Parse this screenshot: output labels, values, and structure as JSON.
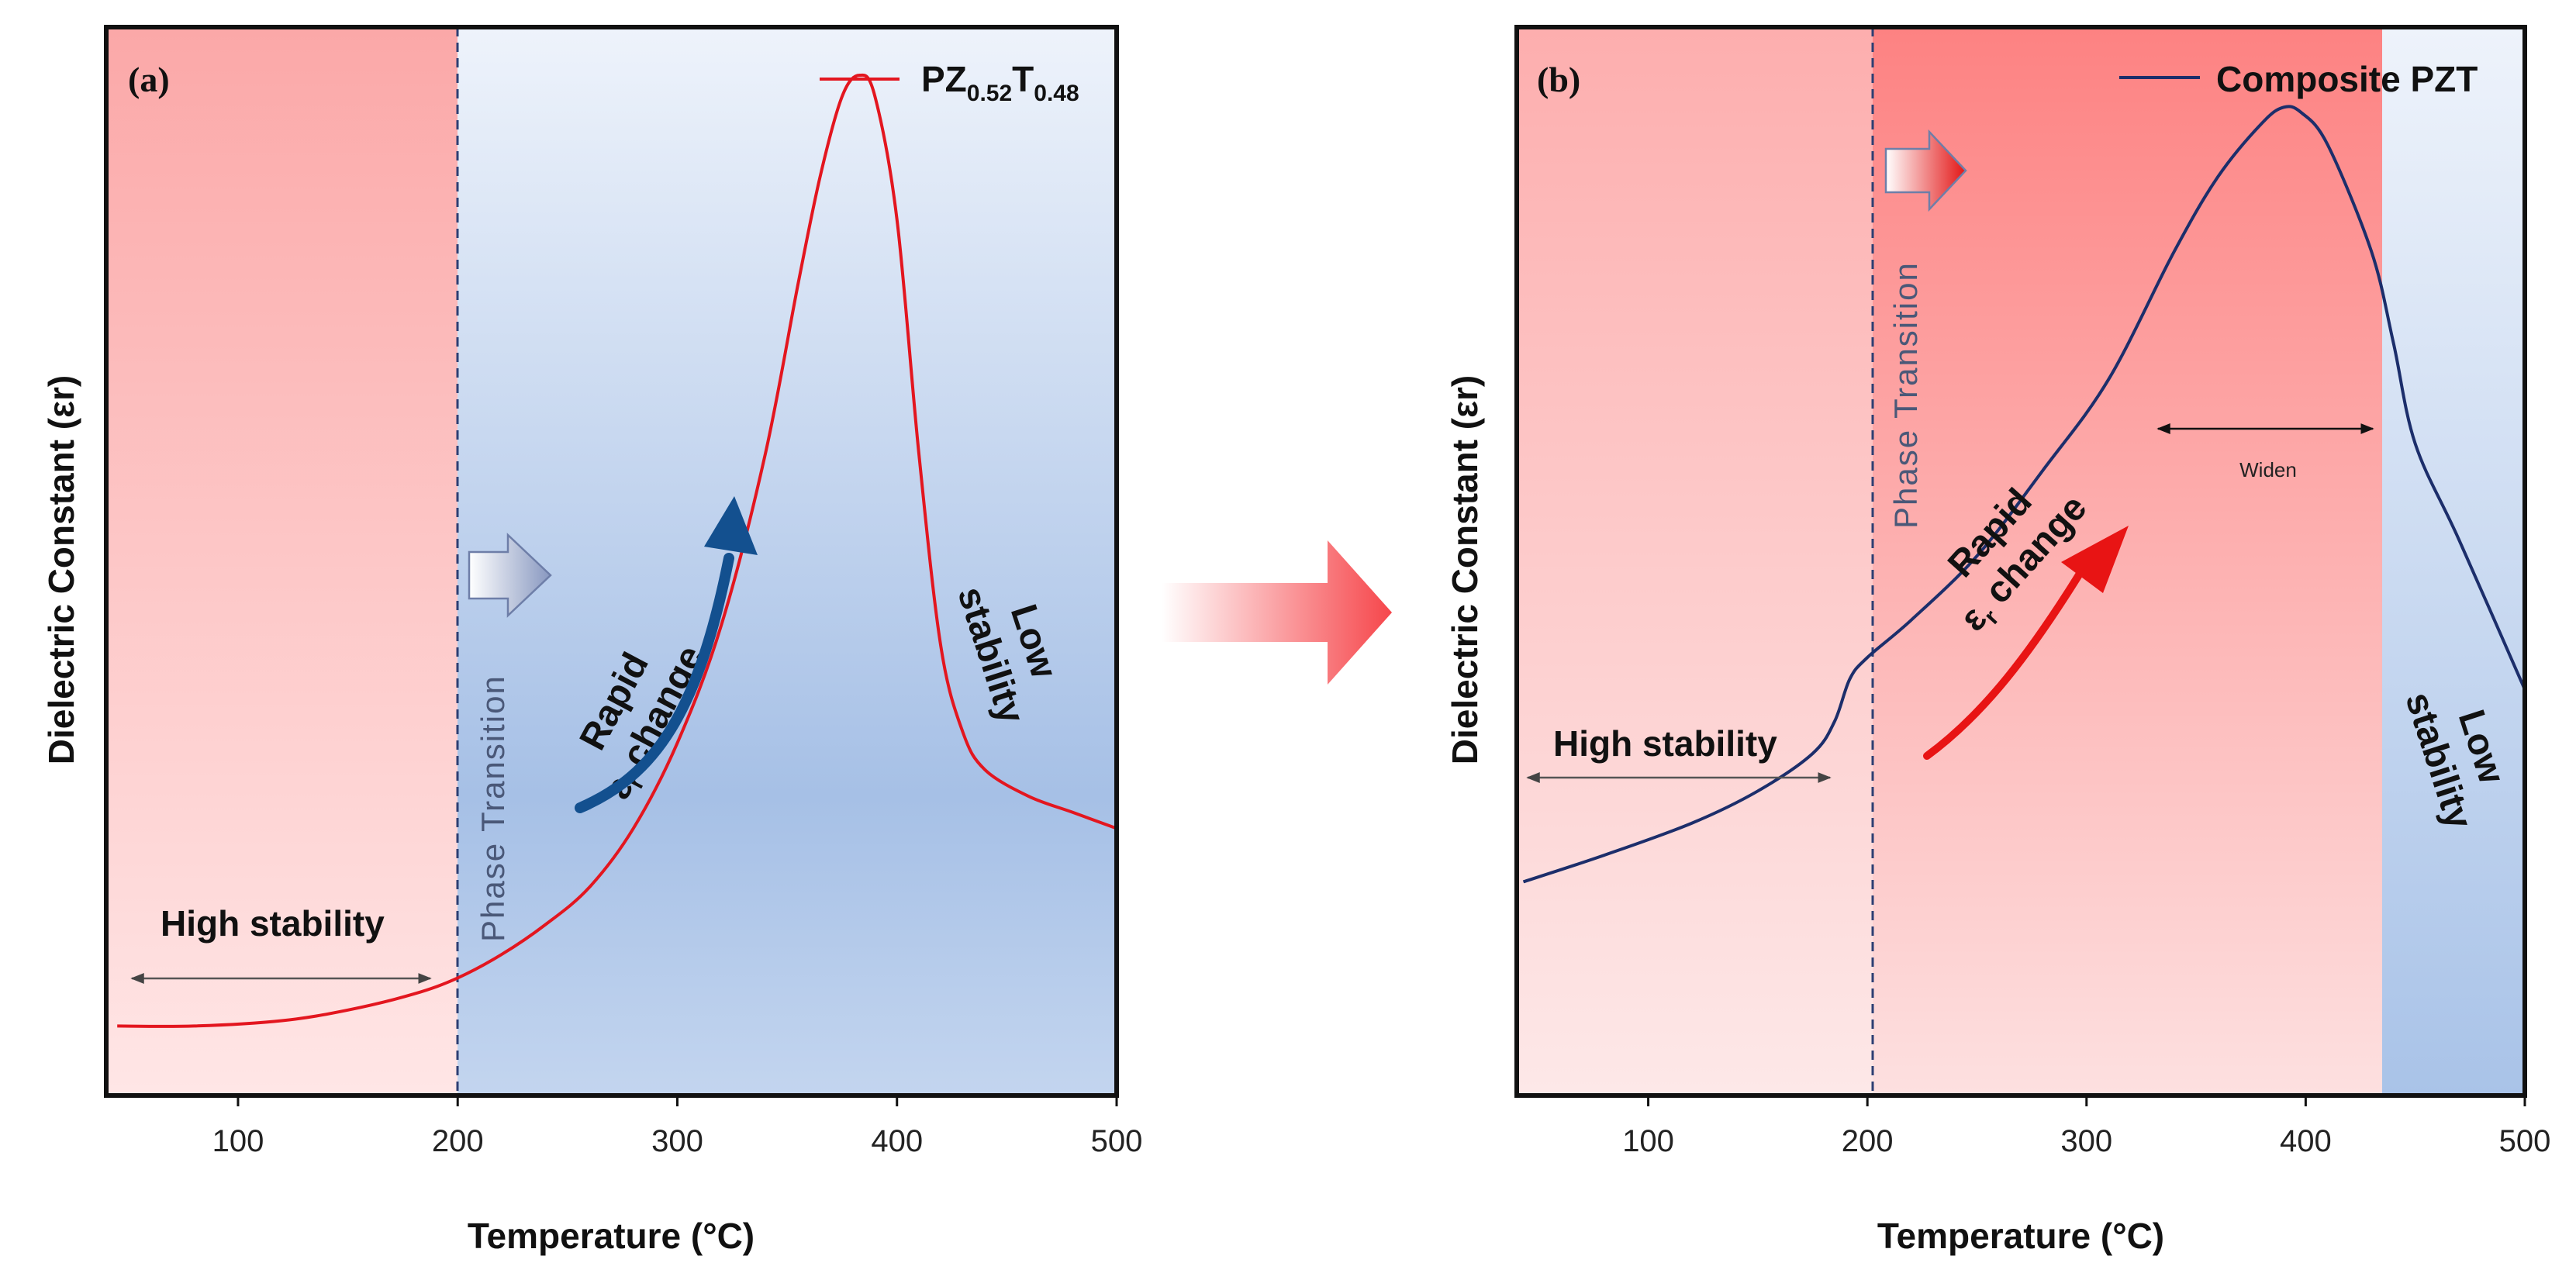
{
  "colors": {
    "red_line": "#e3161f",
    "blue_line": "#1c2e6b",
    "rapid_blue_arrow": "#13508f",
    "rapid_red_arrow": "#e81414",
    "frame": "#111111"
  },
  "chart_data": [
    {
      "panel": "(a)",
      "type": "line",
      "title": "",
      "xlabel": "Temperature (°C)",
      "ylabel": "Dielectric Constant (εr)",
      "xlim": [
        40,
        500
      ],
      "ylim": [
        0,
        100
      ],
      "xticks": [
        "100",
        "200",
        "300",
        "400",
        "500"
      ],
      "legend": {
        "label_main": "PZ",
        "sub1": "0.52",
        "mid": "T",
        "sub2": "0.48",
        "position": "top-right"
      },
      "series": [
        {
          "name": "PZ0.52T0.48",
          "x": [
            45,
            80,
            120,
            150,
            180,
            200,
            220,
            240,
            260,
            280,
            300,
            320,
            340,
            355,
            365,
            375,
            383,
            390,
            400,
            410,
            420,
            430,
            440,
            460,
            480,
            500
          ],
          "y": [
            6.5,
            6.5,
            7.0,
            8.0,
            9.5,
            11.0,
            13.2,
            16.0,
            19.5,
            25.0,
            33.0,
            44.0,
            60.0,
            76.0,
            86.0,
            93.5,
            95.5,
            93.5,
            82.0,
            60.0,
            42.0,
            34.0,
            30.5,
            28.0,
            26.5,
            25.0
          ]
        }
      ],
      "regions": [
        {
          "from": 40,
          "to": 203,
          "fill": "red"
        },
        {
          "from": 203,
          "to": 500,
          "fill": "blue"
        }
      ],
      "phase_line_x": 203,
      "annotations": {
        "high_stability": "High stability",
        "phase": "Phase  Transition",
        "rapid_line1": "Rapid",
        "rapid_eps": "ε",
        "rapid_sub": "r",
        "rapid_change": " change",
        "low_line1": "Low",
        "low_line2": "stability"
      }
    },
    {
      "panel": "(b)",
      "type": "line",
      "title": "",
      "xlabel": "Temperature (°C)",
      "ylabel": "Dielectric Constant (εr)",
      "xlim": [
        40,
        500
      ],
      "ylim": [
        0,
        100
      ],
      "xticks": [
        "100",
        "200",
        "300",
        "400",
        "500"
      ],
      "legend": {
        "label_main": "Composite PZT",
        "position": "top-right"
      },
      "series": [
        {
          "name": "Composite PZT",
          "x": [
            43,
            80,
            120,
            150,
            175,
            185,
            192,
            200,
            220,
            250,
            280,
            310,
            340,
            360,
            380,
            390,
            398,
            410,
            430,
            440,
            450,
            470,
            500
          ],
          "y": [
            20.0,
            22.5,
            25.5,
            28.5,
            32.0,
            35.0,
            39.0,
            41.0,
            44.5,
            50.5,
            58.5,
            67.0,
            79.0,
            86.0,
            91.0,
            92.5,
            92.0,
            89.0,
            79.0,
            70.5,
            61.0,
            52.0,
            38.0
          ]
        }
      ],
      "regions": [
        {
          "from": 40,
          "to": 203,
          "fill": "light-red"
        },
        {
          "from": 203,
          "to": 442,
          "fill": "red"
        },
        {
          "from": 442,
          "to": 500,
          "fill": "blue"
        }
      ],
      "phase_line_x": 203,
      "widen_range": [
        340,
        440
      ],
      "annotations": {
        "high_stability": "High stability",
        "phase": "Phase  Transition",
        "rapid_line1": "Rapid",
        "rapid_eps": "ε",
        "rapid_sub": "r",
        "rapid_change": " change",
        "widen": "Widen",
        "low_line1": "Low",
        "low_line2": "stability"
      }
    }
  ]
}
